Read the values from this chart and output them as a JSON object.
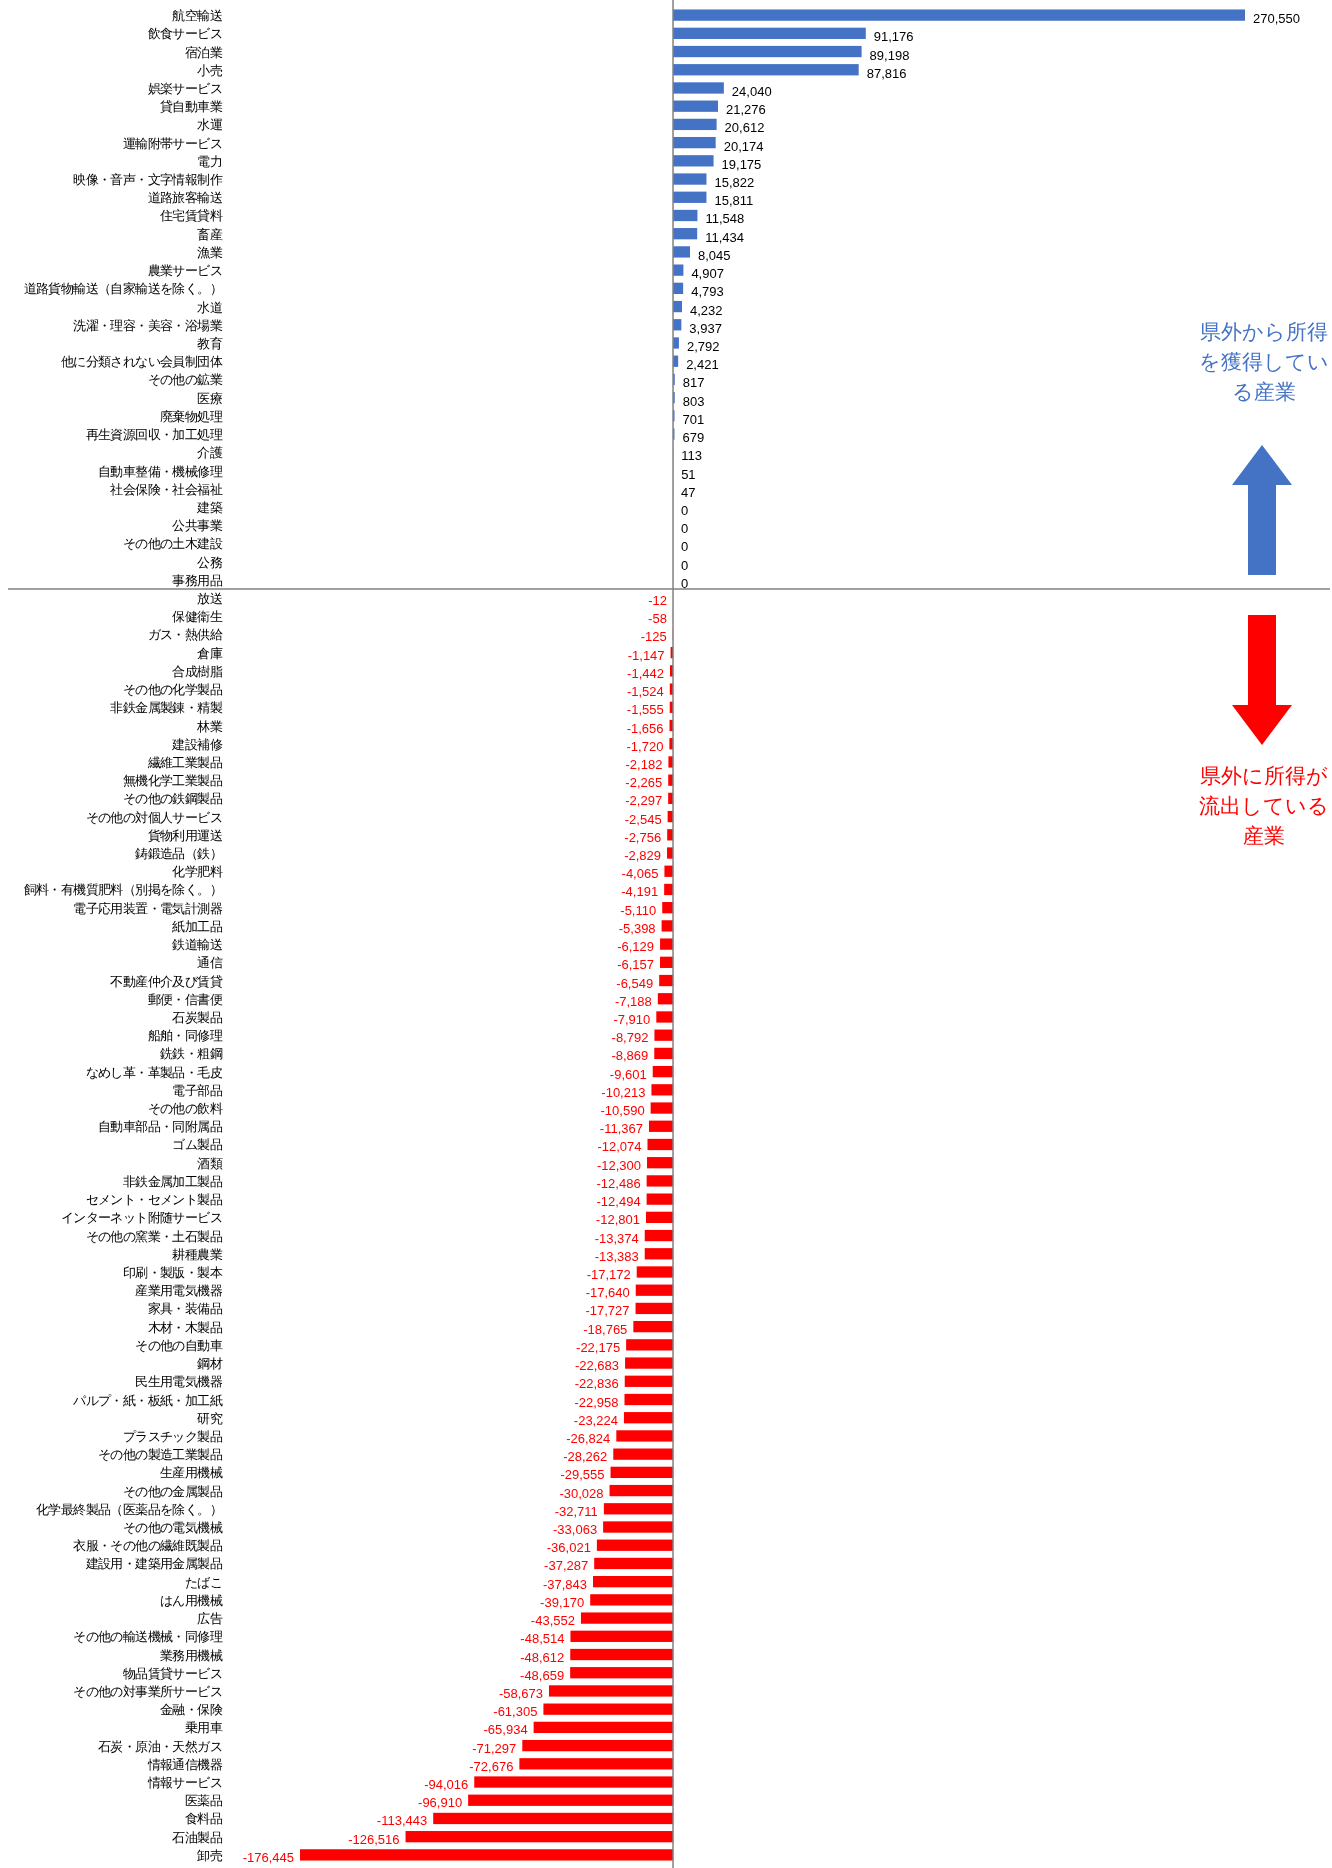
{
  "chart_data": {
    "type": "bar",
    "orientation": "horizontal",
    "value_labels": [
      "270,550",
      "91,176",
      "89,198",
      "87,816",
      "24,040",
      "21,276",
      "20,612",
      "20,174",
      "19,175",
      "15,822",
      "15,811",
      "11,548",
      "11,434",
      "8,045",
      "4,907",
      "4,793",
      "4,232",
      "3,937",
      "2,792",
      "2,421",
      "817",
      "803",
      "701",
      "679",
      "113",
      "51",
      "47",
      "0",
      "0",
      "0",
      "0",
      "0",
      "-12",
      "-58",
      "-125",
      "-1,147",
      "-1,442",
      "-1,524",
      "-1,555",
      "-1,656",
      "-1,720",
      "-2,182",
      "-2,265",
      "-2,297",
      "-2,545",
      "-2,756",
      "-2,829",
      "-4,065",
      "-4,191",
      "-5,110",
      "-5,398",
      "-6,129",
      "-6,157",
      "-6,549",
      "-7,188",
      "-7,910",
      "-8,792",
      "-8,869",
      "-9,601",
      "-10,213",
      "-10,590",
      "-11,367",
      "-12,074",
      "-12,300",
      "-12,486",
      "-12,494",
      "-12,801",
      "-13,374",
      "-13,383",
      "-17,172",
      "-17,640",
      "-17,727",
      "-18,765",
      "-22,175",
      "-22,683",
      "-22,836",
      "-22,958",
      "-23,224",
      "-26,824",
      "-28,262",
      "-29,555",
      "-30,028",
      "-32,711",
      "-33,063",
      "-36,021",
      "-37,287",
      "-37,843",
      "-39,170",
      "-43,552",
      "-48,514",
      "-48,612",
      "-48,659",
      "-58,673",
      "-61,305",
      "-65,934",
      "-71,297",
      "-72,676",
      "-94,016",
      "-96,910",
      "-113,443",
      "-126,516",
      "-176,445"
    ],
    "categories": [
      "航空輸送",
      "飲食サービス",
      "宿泊業",
      "小売",
      "娯楽サービス",
      "貸自動車業",
      "水運",
      "運輸附帯サービス",
      "電力",
      "映像・音声・文字情報制作",
      "道路旅客輸送",
      "住宅賃貸料",
      "畜産",
      "漁業",
      "農業サービス",
      "道路貨物輸送（自家輸送を除く。）",
      "水道",
      "洗濯・理容・美容・浴場業",
      "教育",
      "他に分類されない会員制団体",
      "その他の鉱業",
      "医療",
      "廃棄物処理",
      "再生資源回収・加工処理",
      "介護",
      "自動車整備・機械修理",
      "社会保険・社会福祉",
      "建築",
      "公共事業",
      "その他の土木建設",
      "公務",
      "事務用品",
      "放送",
      "保健衛生",
      "ガス・熱供給",
      "倉庫",
      "合成樹脂",
      "その他の化学製品",
      "非鉄金属製錬・精製",
      "林業",
      "建設補修",
      "繊維工業製品",
      "無機化学工業製品",
      "その他の鉄鋼製品",
      "その他の対個人サービス",
      "貨物利用運送",
      "鋳鍛造品（鉄）",
      "化学肥料",
      "飼料・有機質肥料（別掲を除く。）",
      "電子応用装置・電気計測器",
      "紙加工品",
      "鉄道輸送",
      "通信",
      "不動産仲介及び賃貸",
      "郵便・信書便",
      "石炭製品",
      "船舶・同修理",
      "銑鉄・粗鋼",
      "なめし革・革製品・毛皮",
      "電子部品",
      "その他の飲料",
      "自動車部品・同附属品",
      "ゴム製品",
      "酒類",
      "非鉄金属加工製品",
      "セメント・セメント製品",
      "インターネット附随サービス",
      "その他の窯業・土石製品",
      "耕種農業",
      "印刷・製版・製本",
      "産業用電気機器",
      "家具・装備品",
      "木材・木製品",
      "その他の自動車",
      "鋼材",
      "民生用電気機器",
      "パルプ・紙・板紙・加工紙",
      "研究",
      "プラスチック製品",
      "その他の製造工業製品",
      "生産用機械",
      "その他の金属製品",
      "化学最終製品（医薬品を除く。）",
      "その他の電気機械",
      "衣服・その他の繊維既製品",
      "建設用・建築用金属製品",
      "たばこ",
      "はん用機械",
      "広告",
      "その他の輸送機械・同修理",
      "業務用機械",
      "物品賃貸サービス",
      "その他の対事業所サービス",
      "金融・保険",
      "乗用車",
      "石炭・原油・天然ガス",
      "情報通信機器",
      "情報サービス",
      "医薬品",
      "食料品",
      "石油製品",
      "卸売"
    ],
    "values": [
      270550,
      91176,
      89198,
      87816,
      24040,
      21276,
      20612,
      20174,
      19175,
      15822,
      15811,
      11548,
      11434,
      8045,
      4907,
      4793,
      4232,
      3937,
      2792,
      2421,
      817,
      803,
      701,
      679,
      113,
      51,
      47,
      0,
      0,
      0,
      0,
      0,
      -12,
      -58,
      -125,
      -1147,
      -1442,
      -1524,
      -1555,
      -1656,
      -1720,
      -2182,
      -2265,
      -2297,
      -2545,
      -2756,
      -2829,
      -4065,
      -4191,
      -5110,
      -5398,
      -6129,
      -6157,
      -6549,
      -7188,
      -7910,
      -8792,
      -8869,
      -9601,
      -10213,
      -10590,
      -11367,
      -12074,
      -12300,
      -12486,
      -12494,
      -12801,
      -13374,
      -13383,
      -17172,
      -17640,
      -17727,
      -18765,
      -22175,
      -22683,
      -22836,
      -22958,
      -23224,
      -26824,
      -28262,
      -29555,
      -30028,
      -32711,
      -33063,
      -36021,
      -37287,
      -37843,
      -39170,
      -43552,
      -48514,
      -48612,
      -48659,
      -58673,
      -61305,
      -65934,
      -71297,
      -72676,
      -94016,
      -96910,
      -113443,
      -126516,
      -176445
    ],
    "colors": [
      "#4472c4",
      "#4472c4",
      "#4472c4",
      "#4472c4",
      "#4472c4",
      "#4472c4",
      "#4472c4",
      "#4472c4",
      "#4472c4",
      "#4472c4",
      "#4472c4",
      "#4472c4",
      "#4472c4",
      "#4472c4",
      "#4472c4",
      "#4472c4",
      "#4472c4",
      "#4472c4",
      "#4472c4",
      "#4472c4",
      "#4472c4",
      "#4472c4",
      "#4472c4",
      "#4472c4",
      "#4472c4",
      "#4472c4",
      "#4472c4",
      "#4472c4",
      "#4472c4",
      "#4472c4",
      "#4472c4",
      "#4472c4",
      "#ff0000",
      "#ff0000",
      "#ff0000",
      "#ff0000",
      "#ff0000",
      "#ff0000",
      "#ff0000",
      "#ff0000",
      "#ff0000",
      "#ff0000",
      "#ff0000",
      "#ff0000",
      "#ff0000",
      "#ff0000",
      "#ff0000",
      "#ff0000",
      "#ff0000",
      "#ff0000",
      "#ff0000",
      "#ff0000",
      "#ff0000",
      "#ff0000",
      "#ff0000",
      "#ff0000",
      "#ff0000",
      "#ff0000",
      "#ff0000",
      "#ff0000",
      "#ff0000",
      "#ff0000",
      "#ff0000",
      "#ff0000",
      "#ff0000",
      "#ff0000",
      "#ff0000",
      "#ff0000",
      "#ff0000",
      "#ff0000",
      "#ff0000",
      "#ff0000",
      "#ff0000",
      "#ff0000",
      "#ff0000",
      "#ff0000",
      "#ff0000",
      "#ff0000",
      "#ff0000",
      "#ff0000",
      "#ff0000",
      "#ff0000",
      "#ff0000",
      "#ff0000",
      "#ff0000",
      "#ff0000",
      "#ff0000",
      "#ff0000",
      "#ff0000",
      "#ff0000",
      "#ff0000",
      "#ff0000",
      "#ff0000",
      "#ff0000",
      "#ff0000",
      "#ff0000",
      "#ff0000",
      "#ff0000",
      "#ff0000",
      "#ff0000",
      "#ff0000",
      "#ff0000"
    ],
    "annotations": [
      "県外から所得を獲得している産業",
      "県外に所得が流出している産業"
    ]
  }
}
